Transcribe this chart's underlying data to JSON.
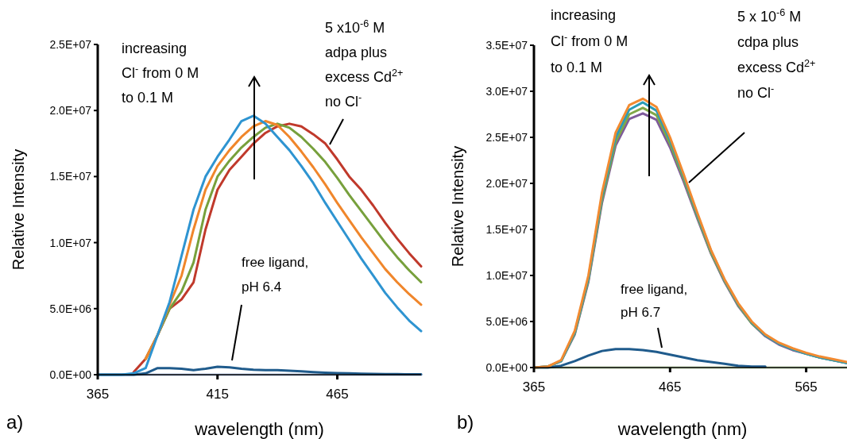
{
  "chart_data": [
    {
      "type": "line",
      "xlabel": "wavelength (nm)",
      "ylabel": "Relative Intensity",
      "xlim": [
        365,
        500
      ],
      "xticks": [
        365,
        415,
        465
      ],
      "ylim": [
        0,
        25000000.0
      ],
      "yticks": [
        {
          "value": 0,
          "label": "0.0E+00"
        },
        {
          "value": 5000000.0,
          "label": "5.0E+06"
        },
        {
          "value": 10000000.0,
          "label": "1.0E+07"
        },
        {
          "value": 15000000.0,
          "label": "1.5E+07"
        },
        {
          "value": 20000000.0,
          "label": "2.0E+07"
        },
        {
          "value": 25000000.0,
          "label": "2.5E+07"
        }
      ],
      "grid": false,
      "marker": "none",
      "line_style": "solid",
      "x": [
        365,
        370,
        375,
        380,
        385,
        390,
        395,
        400,
        405,
        410,
        415,
        420,
        425,
        430,
        435,
        440,
        445,
        450,
        455,
        460,
        465,
        470,
        475,
        480,
        485,
        490,
        495,
        500
      ],
      "series": [
        {
          "color": "#b4c7e7",
          "values": [
            0,
            0,
            0,
            0,
            0,
            0,
            0,
            0,
            0,
            0,
            0,
            0,
            0,
            0,
            0,
            0,
            0,
            0,
            0,
            0,
            0,
            0,
            0,
            0,
            0,
            0,
            0,
            0
          ]
        },
        {
          "color": "#1f5b8c",
          "values": [
            0,
            0,
            0,
            0,
            100000.0,
            500000.0,
            500000.0,
            450000.0,
            350000.0,
            450000.0,
            600000.0,
            550000.0,
            450000.0,
            380000.0,
            350000.0,
            350000.0,
            300000.0,
            250000.0,
            200000.0,
            150000.0,
            120000.0,
            100000.0,
            80000.0,
            60000.0,
            50000.0,
            40000.0,
            30000.0,
            30000.0
          ]
        },
        {
          "color": "#c0392b",
          "values": [
            null,
            null,
            null,
            200000.0,
            1200000.0,
            3000000.0,
            5000000.0,
            5700000.0,
            7000000.0,
            11000000.0,
            14000000.0,
            15500000.0,
            16500000.0,
            17500000.0,
            18300000.0,
            18800000.0,
            19000000.0,
            18800000.0,
            18200000.0,
            17500000.0,
            16300000.0,
            15000000.0,
            14000000.0,
            12800000.0,
            11500000.0,
            10300000.0,
            9200000.0,
            8200000.0
          ]
        },
        {
          "color": "#77a03c",
          "values": [
            null,
            null,
            null,
            null,
            1200000.0,
            3000000.0,
            5000000.0,
            6300000.0,
            8500000.0,
            12500000.0,
            15000000.0,
            16200000.0,
            17200000.0,
            18000000.0,
            18700000.0,
            19000000.0,
            18700000.0,
            18000000.0,
            17100000.0,
            16100000.0,
            14900000.0,
            13600000.0,
            12400000.0,
            11200000.0,
            10000000.0,
            8900000.0,
            7900000.0,
            7000000.0
          ]
        },
        {
          "color": "#f0862b",
          "values": [
            null,
            null,
            null,
            null,
            1200000.0,
            3000000.0,
            5300000.0,
            7500000.0,
            11000000.0,
            14000000.0,
            15800000.0,
            17000000.0,
            18000000.0,
            18800000.0,
            19200000.0,
            18900000.0,
            18000000.0,
            16900000.0,
            15700000.0,
            14400000.0,
            13000000.0,
            11700000.0,
            10400000.0,
            9200000.0,
            8000000.0,
            7000000.0,
            6100000.0,
            5300000.0
          ]
        },
        {
          "color": "#2e94d1",
          "values": [
            0,
            0,
            0,
            100000.0,
            500000.0,
            3000000.0,
            5500000.0,
            9000000.0,
            12500000.0,
            15000000.0,
            16500000.0,
            17800000.0,
            19200000.0,
            19600000.0,
            19000000.0,
            18000000.0,
            17000000.0,
            15800000.0,
            14500000.0,
            13000000.0,
            11600000.0,
            10200000.0,
            8800000.0,
            7500000.0,
            6200000.0,
            5100000.0,
            4100000.0,
            3300000.0
          ]
        }
      ],
      "annotations": [
        "a)",
        "increasing\nCl$^{-}$ from 0 M\nto 0.1 M",
        "5 x10$^{-6}$ M\nadpa plus\nexcess Cd$^{2+}$\nno Cl$^{-}$",
        "free ligand,\npH 6.4"
      ]
    },
    {
      "type": "line",
      "xlabel": "wavelength (nm)",
      "ylabel": "Relative Intensity",
      "xlim": [
        365,
        595
      ],
      "xticks": [
        365,
        465,
        565
      ],
      "ylim": [
        0,
        35000000.0
      ],
      "yticks": [
        {
          "value": 0,
          "label": "0.0E+00"
        },
        {
          "value": 5000000.0,
          "label": "5.0E+06"
        },
        {
          "value": 10000000.0,
          "label": "1.0E+07"
        },
        {
          "value": 15000000.0,
          "label": "1.5E+07"
        },
        {
          "value": 20000000.0,
          "label": "2.0E+07"
        },
        {
          "value": 25000000.0,
          "label": "2.5E+07"
        },
        {
          "value": 30000000.0,
          "label": "3.0E+07"
        },
        {
          "value": 35000000.0,
          "label": "3.5E+07"
        }
      ],
      "grid": false,
      "marker": "none",
      "line_style": "solid",
      "x": [
        365,
        375,
        385,
        395,
        405,
        415,
        425,
        435,
        445,
        455,
        465,
        475,
        485,
        495,
        505,
        515,
        525,
        535,
        545,
        555,
        565,
        575,
        585,
        595
      ],
      "series": [
        {
          "color": "#c6dfb4",
          "values": [
            0,
            0,
            0,
            0,
            0,
            0,
            0,
            0,
            0,
            0,
            0,
            0,
            0,
            0,
            0,
            0,
            0,
            0,
            0,
            0,
            0,
            0,
            0,
            0
          ]
        },
        {
          "color": "#1f5b8c",
          "values": [
            0,
            0,
            200000.0,
            700000.0,
            1300000.0,
            1800000.0,
            2000000.0,
            2000000.0,
            1900000.0,
            1700000.0,
            1400000.0,
            1100000.0,
            800000.0,
            600000.0,
            400000.0,
            200000.0,
            100000.0,
            100000.0,
            null,
            null,
            null,
            null,
            null,
            null
          ]
        },
        {
          "color": "#7e5a9b",
          "values": [
            0,
            100000.0,
            700000.0,
            3600000.0,
            9300000.0,
            17900000.0,
            24100000.0,
            27000000.0,
            27600000.0,
            26900000.0,
            23900000.0,
            20200000.0,
            16200000.0,
            12400000.0,
            9300000.0,
            6700000.0,
            4800000.0,
            3400000.0,
            2500000.0,
            1900000.0,
            1500000.0,
            1100000.0,
            800000.0,
            500000.0
          ]
        },
        {
          "color": "#80a848",
          "values": [
            0,
            100000.0,
            700000.0,
            3700000.0,
            9500000.0,
            18200000.0,
            24500000.0,
            27500000.0,
            28200000.0,
            27400000.0,
            24300000.0,
            20500000.0,
            16400000.0,
            12500000.0,
            9400000.0,
            6800000.0,
            4800000.0,
            3500000.0,
            2600000.0,
            2000000.0,
            1500000.0,
            1100000.0,
            800000.0,
            500000.0
          ]
        },
        {
          "color": "#2a9bb8",
          "values": [
            0,
            100000.0,
            700000.0,
            3800000.0,
            9700000.0,
            18600000.0,
            25000000.0,
            28000000.0,
            28800000.0,
            27900000.0,
            24700000.0,
            20800000.0,
            16600000.0,
            12700000.0,
            9500000.0,
            6900000.0,
            4900000.0,
            3500000.0,
            2600000.0,
            2000000.0,
            1500000.0,
            1100000.0,
            800000.0,
            500000.0
          ]
        },
        {
          "color": "#f28a30",
          "values": [
            0,
            100000.0,
            800000.0,
            4000000.0,
            10000000.0,
            19000000.0,
            25500000.0,
            28500000.0,
            29200000.0,
            28300000.0,
            25000000.0,
            21000000.0,
            16800000.0,
            12800000.0,
            9600000.0,
            7000000.0,
            5000000.0,
            3600000.0,
            2700000.0,
            2100000.0,
            1600000.0,
            1200000.0,
            900000.0,
            600000.0
          ]
        }
      ],
      "annotations": [
        "b)",
        "increasing\nCl$^{-}$ from 0 M\nto 0.1 M",
        "5 x 10$^{-6}$ M\ncdpa plus\nexcess Cd$^{2+}$\nno Cl$^{-}$",
        "free ligand,\npH 6.7"
      ]
    }
  ]
}
